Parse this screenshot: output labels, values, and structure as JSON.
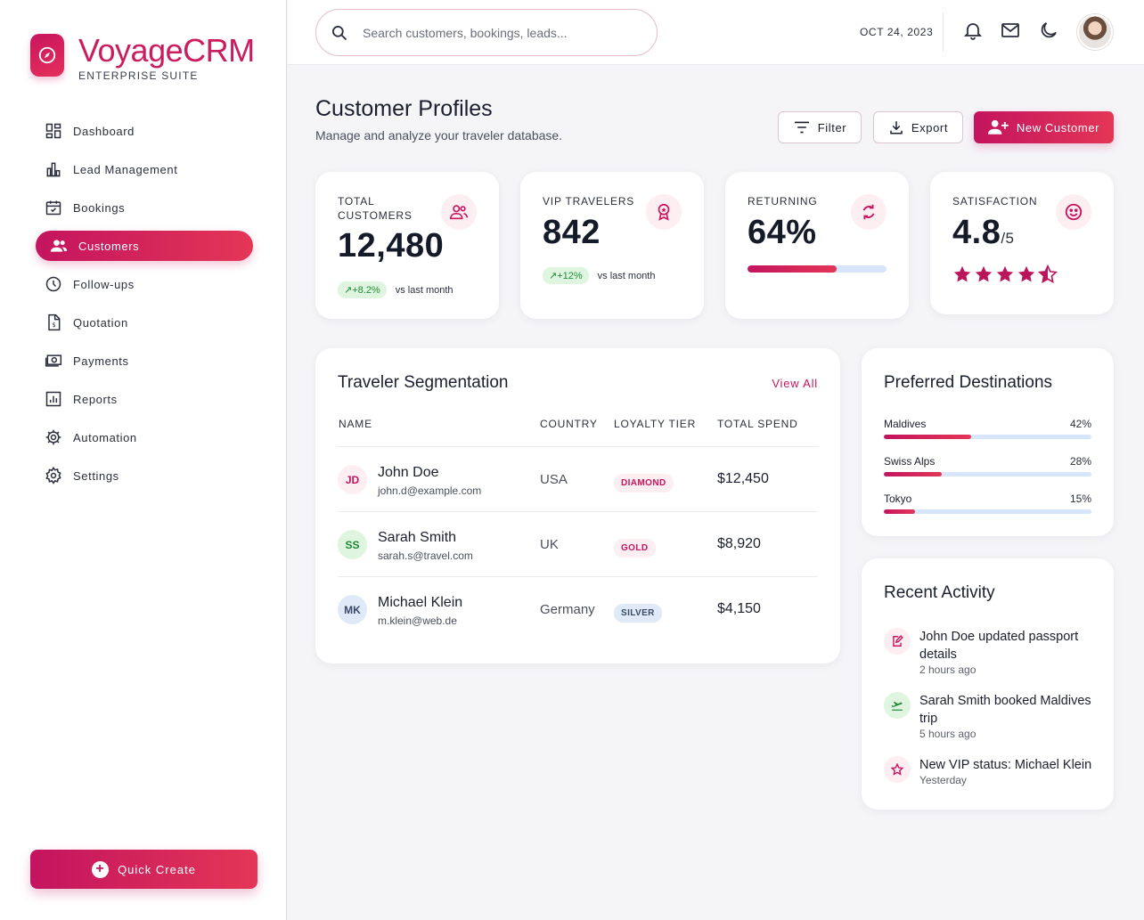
{
  "brand": {
    "title": "VoyageCRM",
    "subtitle": "ENTERPRISE SUITE"
  },
  "nav": [
    {
      "label": "Dashboard",
      "icon": "dashboard-icon"
    },
    {
      "label": "Lead Management",
      "icon": "chart-bar-icon"
    },
    {
      "label": "Bookings",
      "icon": "calendar-check-icon"
    },
    {
      "label": "Customers",
      "icon": "users-icon",
      "active": true
    },
    {
      "label": "Follow-ups",
      "icon": "clock-icon"
    },
    {
      "label": "Quotation",
      "icon": "invoice-icon"
    },
    {
      "label": "Payments",
      "icon": "cash-icon"
    },
    {
      "label": "Reports",
      "icon": "report-chart-icon"
    },
    {
      "label": "Automation",
      "icon": "automation-gear-icon"
    },
    {
      "label": "Settings",
      "icon": "gear-icon"
    }
  ],
  "quick_create": "Quick Create",
  "topbar": {
    "search_placeholder": "Search customers, bookings, leads...",
    "date": "OCT 24, 2023"
  },
  "header": {
    "title": "Customer Profiles",
    "subtitle": "Manage and analyze your traveler database.",
    "filter": "Filter",
    "export": "Export",
    "new_customer": "New Customer"
  },
  "stats": {
    "total": {
      "label": "TOTAL CUSTOMERS",
      "value": "12,480",
      "trend": "+8.2%",
      "trend_note": "vs last month"
    },
    "vip": {
      "label": "VIP TRAVELERS",
      "value": "842",
      "trend": "+12%",
      "trend_note": "vs last month"
    },
    "returning": {
      "label": "RETURNING",
      "value": "64%",
      "progress": 0.64
    },
    "satisfaction": {
      "label": "SATISFACTION",
      "value": "4.8",
      "suffix": "/5",
      "rating": 4.5
    }
  },
  "segmentation": {
    "title": "Traveler Segmentation",
    "view_all": "View All",
    "columns": [
      "NAME",
      "COUNTRY",
      "LOYALTY TIER",
      "TOTAL SPEND"
    ],
    "rows": [
      {
        "initials": "JD",
        "name": "John Doe",
        "email": "john.d@example.com",
        "country": "USA",
        "tier": "DIAMOND",
        "spend": "$12,450"
      },
      {
        "initials": "SS",
        "name": "Sarah Smith",
        "email": "sarah.s@travel.com",
        "country": "UK",
        "tier": "GOLD",
        "spend": "$8,920"
      },
      {
        "initials": "MK",
        "name": "Michael Klein",
        "email": "m.klein@web.de",
        "country": "Germany",
        "tier": "SILVER",
        "spend": "$4,150"
      }
    ]
  },
  "destinations": {
    "title": "Preferred Destinations",
    "items": [
      {
        "name": "Maldives",
        "pct": "42%",
        "value": 0.42
      },
      {
        "name": "Swiss Alps",
        "pct": "28%",
        "value": 0.28
      },
      {
        "name": "Tokyo",
        "pct": "15%",
        "value": 0.15
      }
    ]
  },
  "activity": {
    "title": "Recent Activity",
    "items": [
      {
        "text": "John Doe updated passport details",
        "time": "2 hours ago",
        "icon": "edit-icon"
      },
      {
        "text": "Sarah Smith booked Maldives trip",
        "time": "5 hours ago",
        "icon": "plane-icon"
      },
      {
        "text": "New VIP status: Michael Klein",
        "time": "Yesterday",
        "icon": "star-icon"
      }
    ]
  },
  "colors": {
    "accent": "#c8155e",
    "accent_end": "#e43656",
    "track": "#d7e6fa"
  }
}
